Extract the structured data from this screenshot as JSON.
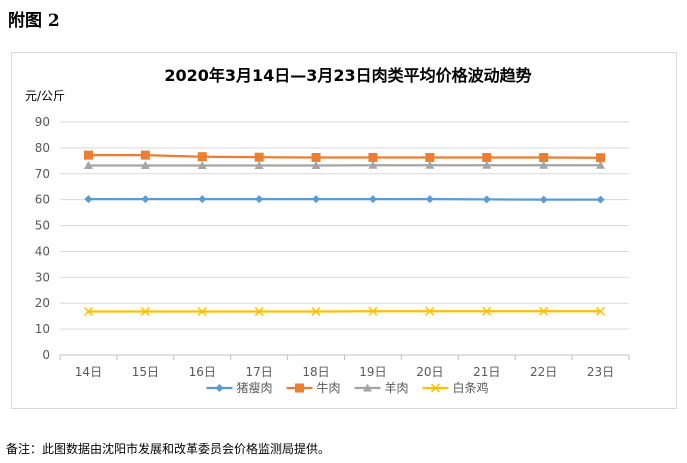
{
  "page": {
    "appendix_label": "附图 2",
    "footnote": "备注：此图数据由沈阳市发展和改革委员会价格监测局提供。"
  },
  "chart_data": {
    "type": "line",
    "title": "2020年3月14日—3月23日肉类平均价格波动趋势",
    "ylabel": "元/公斤",
    "xlabel": "",
    "ylim": [
      0,
      90
    ],
    "yticks": [
      0,
      10,
      20,
      30,
      40,
      50,
      60,
      70,
      80,
      90
    ],
    "grid": true,
    "legend_position": "bottom",
    "categories": [
      "14日",
      "15日",
      "16日",
      "17日",
      "18日",
      "19日",
      "20日",
      "21日",
      "22日",
      "23日"
    ],
    "series": [
      {
        "name": "猪瘦肉",
        "color": "#5b9bd5",
        "marker": "diamond",
        "values": [
          60.2,
          60.2,
          60.2,
          60.2,
          60.2,
          60.2,
          60.2,
          60.1,
          60.0,
          60.0
        ]
      },
      {
        "name": "牛肉",
        "color": "#ed7d31",
        "marker": "square",
        "values": [
          77.2,
          77.2,
          76.6,
          76.4,
          76.3,
          76.3,
          76.3,
          76.3,
          76.3,
          76.2
        ]
      },
      {
        "name": "羊肉",
        "color": "#a5a5a5",
        "marker": "triangle",
        "values": [
          73.2,
          73.2,
          73.2,
          73.2,
          73.2,
          73.3,
          73.3,
          73.3,
          73.3,
          73.3
        ]
      },
      {
        "name": "白条鸡",
        "color": "#ffc000",
        "marker": "x",
        "values": [
          16.8,
          16.8,
          16.8,
          16.8,
          16.8,
          16.9,
          16.9,
          16.9,
          16.9,
          16.9
        ]
      }
    ]
  }
}
